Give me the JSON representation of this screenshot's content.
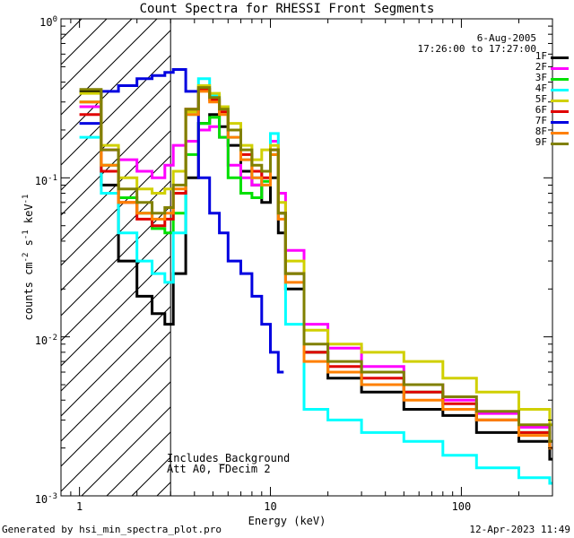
{
  "chart_data": {
    "type": "line",
    "title": "Count Spectra for RHESSI Front Segments",
    "xlabel": "Energy (keV)",
    "ylabel_parts": {
      "base": "counts cm",
      "exp1": "-2",
      "mid1": " s",
      "exp2": "-1",
      "mid2": " keV",
      "exp3": "-1"
    },
    "xscale": "log",
    "yscale": "log",
    "xlim": [
      0.8,
      300
    ],
    "ylim": [
      0.001,
      1.0
    ],
    "x_ticks": [
      {
        "value": 1,
        "label": "1"
      },
      {
        "value": 10,
        "label": "10"
      },
      {
        "value": 100,
        "label": "100"
      }
    ],
    "y_ticks": [
      {
        "value": 0.001,
        "base": "10",
        "exp": "-3"
      },
      {
        "value": 0.01,
        "base": "10",
        "exp": "-2"
      },
      {
        "value": 0.1,
        "base": "10",
        "exp": "-1"
      },
      {
        "value": 1,
        "base": "10",
        "exp": "0"
      }
    ],
    "hatched_region_max_energy": 3,
    "date": "6-Aug-2005",
    "time_range": "17:26:00 to 17:27:00",
    "annotation_lines": [
      "Includes_Background",
      "Att A0, FDecim 2"
    ],
    "series": [
      {
        "name": "1F",
        "color": "#000000",
        "x": [
          1.0,
          1.3,
          1.6,
          2.0,
          2.4,
          2.8,
          3.1,
          3.6,
          4.2,
          4.8,
          5.4,
          6.0,
          7.0,
          8.0,
          9.0,
          10.0,
          11.0,
          12.0,
          15.0,
          20.0,
          30.0,
          50.0,
          80.0,
          120.0,
          200.0,
          290.0
        ],
        "y": [
          0.35,
          0.09,
          0.03,
          0.018,
          0.014,
          0.012,
          0.025,
          0.1,
          0.22,
          0.25,
          0.21,
          0.16,
          0.11,
          0.09,
          0.07,
          0.1,
          0.045,
          0.02,
          0.008,
          0.0055,
          0.0045,
          0.0035,
          0.0032,
          0.0025,
          0.0022,
          0.0017
        ]
      },
      {
        "name": "2F",
        "color": "#ff00ff",
        "x": [
          1.0,
          1.3,
          1.6,
          2.0,
          2.4,
          2.8,
          3.1,
          3.6,
          4.2,
          4.8,
          5.4,
          6.0,
          7.0,
          8.0,
          9.0,
          10.0,
          11.0,
          12.0,
          15.0,
          20.0,
          30.0,
          50.0,
          80.0,
          120.0,
          200.0,
          290.0
        ],
        "y": [
          0.28,
          0.15,
          0.13,
          0.11,
          0.1,
          0.12,
          0.16,
          0.17,
          0.2,
          0.21,
          0.18,
          0.12,
          0.1,
          0.09,
          0.11,
          0.17,
          0.08,
          0.035,
          0.012,
          0.0085,
          0.0065,
          0.005,
          0.004,
          0.0033,
          0.0027,
          0.0022
        ]
      },
      {
        "name": "3F",
        "color": "#00e000",
        "x": [
          1.0,
          1.3,
          1.6,
          2.0,
          2.4,
          2.8,
          3.1,
          3.6,
          4.2,
          4.8,
          5.4,
          6.0,
          7.0,
          8.0,
          9.0,
          10.0,
          11.0,
          12.0,
          15.0,
          20.0,
          30.0,
          50.0,
          80.0,
          120.0,
          200.0,
          290.0
        ],
        "y": [
          0.3,
          0.12,
          0.075,
          0.06,
          0.048,
          0.045,
          0.06,
          0.14,
          0.22,
          0.24,
          0.18,
          0.1,
          0.08,
          0.075,
          0.095,
          0.14,
          0.06,
          0.025,
          0.008,
          0.006,
          0.005,
          0.0045,
          0.0035,
          0.003,
          0.0025,
          0.002
        ]
      },
      {
        "name": "4F",
        "color": "#00ffff",
        "x": [
          1.0,
          1.3,
          1.6,
          2.0,
          2.4,
          2.8,
          3.1,
          3.6,
          4.2,
          4.8,
          5.4,
          6.0,
          7.0,
          8.0,
          9.0,
          10.0,
          11.0,
          12.0,
          15.0,
          20.0,
          30.0,
          50.0,
          80.0,
          120.0,
          200.0,
          290.0
        ],
        "y": [
          0.18,
          0.08,
          0.045,
          0.03,
          0.025,
          0.022,
          0.045,
          0.25,
          0.42,
          0.33,
          0.28,
          0.18,
          0.13,
          0.1,
          0.09,
          0.19,
          0.06,
          0.012,
          0.0035,
          0.003,
          0.0025,
          0.0022,
          0.0018,
          0.0015,
          0.0013,
          0.0012
        ]
      },
      {
        "name": "5F",
        "color": "#d0d000",
        "x": [
          1.0,
          1.3,
          1.6,
          2.0,
          2.4,
          2.8,
          3.1,
          3.6,
          4.2,
          4.8,
          5.4,
          6.0,
          7.0,
          8.0,
          9.0,
          10.0,
          11.0,
          12.0,
          15.0,
          20.0,
          30.0,
          50.0,
          80.0,
          120.0,
          200.0,
          290.0
        ],
        "y": [
          0.34,
          0.16,
          0.1,
          0.085,
          0.08,
          0.085,
          0.11,
          0.26,
          0.38,
          0.34,
          0.28,
          0.22,
          0.16,
          0.13,
          0.15,
          0.16,
          0.07,
          0.03,
          0.011,
          0.009,
          0.008,
          0.007,
          0.0055,
          0.0045,
          0.0035,
          0.0028
        ]
      },
      {
        "name": "6F",
        "color": "#e00000",
        "x": [
          1.0,
          1.3,
          1.6,
          2.0,
          2.4,
          2.8,
          3.1,
          3.6,
          4.2,
          4.8,
          5.4,
          6.0,
          7.0,
          8.0,
          9.0,
          10.0,
          11.0,
          12.0,
          15.0,
          20.0,
          30.0,
          50.0,
          80.0,
          120.0,
          200.0,
          290.0
        ],
        "y": [
          0.25,
          0.11,
          0.07,
          0.055,
          0.05,
          0.055,
          0.08,
          0.27,
          0.36,
          0.31,
          0.26,
          0.2,
          0.14,
          0.11,
          0.1,
          0.15,
          0.06,
          0.025,
          0.008,
          0.0065,
          0.0055,
          0.0045,
          0.0038,
          0.003,
          0.0025,
          0.002
        ]
      },
      {
        "name": "7F",
        "color": "#0000e0",
        "x": [
          1.0,
          1.3,
          1.6,
          2.0,
          2.4,
          2.8,
          3.1,
          3.6,
          4.2,
          4.8,
          5.4,
          6.0,
          7.0,
          8.0,
          9.0,
          10.0,
          11.0
        ],
        "y": [
          0.22,
          0.35,
          0.38,
          0.42,
          0.44,
          0.46,
          0.48,
          0.35,
          0.1,
          0.06,
          0.045,
          0.03,
          0.025,
          0.018,
          0.012,
          0.008,
          0.006
        ]
      },
      {
        "name": "8F",
        "color": "#ff8000",
        "x": [
          1.0,
          1.3,
          1.6,
          2.0,
          2.4,
          2.8,
          3.1,
          3.6,
          4.2,
          4.8,
          5.4,
          6.0,
          7.0,
          8.0,
          9.0,
          10.0,
          11.0,
          12.0,
          15.0,
          20.0,
          30.0,
          50.0,
          80.0,
          120.0,
          200.0,
          290.0
        ],
        "y": [
          0.3,
          0.12,
          0.07,
          0.06,
          0.055,
          0.06,
          0.085,
          0.25,
          0.35,
          0.3,
          0.25,
          0.18,
          0.13,
          0.1,
          0.09,
          0.14,
          0.055,
          0.022,
          0.007,
          0.006,
          0.005,
          0.004,
          0.0035,
          0.003,
          0.0024,
          0.002
        ]
      },
      {
        "name": "9F",
        "color": "#808000",
        "x": [
          1.0,
          1.3,
          1.6,
          2.0,
          2.4,
          2.8,
          3.1,
          3.6,
          4.2,
          4.8,
          5.4,
          6.0,
          7.0,
          8.0,
          9.0,
          10.0,
          11.0,
          12.0,
          15.0,
          20.0,
          30.0,
          50.0,
          80.0,
          120.0,
          200.0,
          290.0
        ],
        "y": [
          0.36,
          0.15,
          0.085,
          0.07,
          0.06,
          0.065,
          0.09,
          0.27,
          0.37,
          0.32,
          0.27,
          0.2,
          0.15,
          0.12,
          0.11,
          0.15,
          0.06,
          0.025,
          0.009,
          0.007,
          0.006,
          0.005,
          0.0042,
          0.0034,
          0.0028,
          0.0022
        ]
      }
    ]
  },
  "footer": {
    "generated_by": "Generated by hsi_min_spectra_plot.pro",
    "timestamp": "12-Apr-2023 11:49"
  }
}
